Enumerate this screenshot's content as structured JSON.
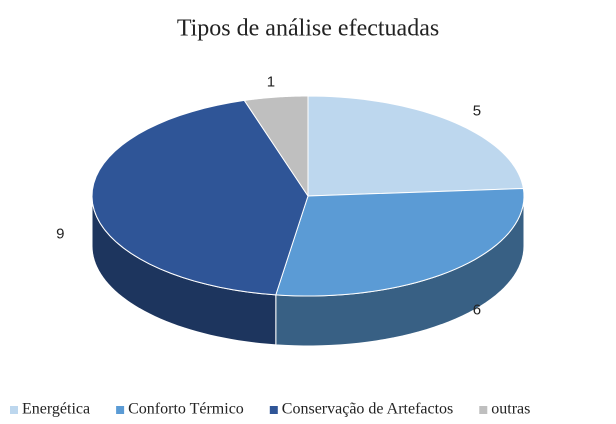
{
  "chart_data": {
    "type": "pie3d",
    "title": "Tipos de análise efectuadas",
    "categories": [
      "Energética",
      "Conforto Térmico",
      "Conservação de Artefactos",
      "outras"
    ],
    "values": [
      5,
      6,
      9,
      1
    ],
    "colors": [
      "#bdd7ee",
      "#5b9bd5",
      "#2f5597",
      "#bfbfbf"
    ],
    "legend": "bottom"
  }
}
